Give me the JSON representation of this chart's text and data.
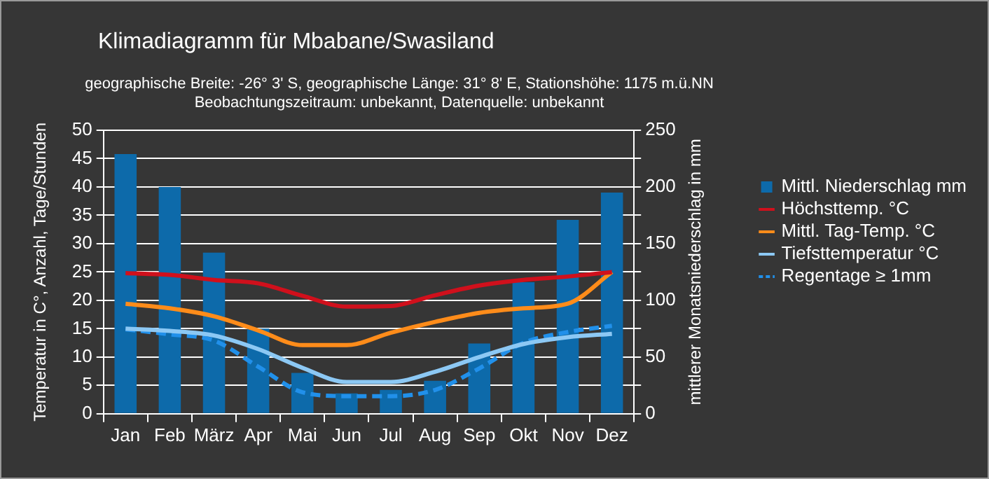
{
  "chart_data": {
    "type": "bar",
    "title": "Klimadiagramm für Mbabane/Swasiland",
    "subtitle": "geographische Breite: -26° 3' S, geographische Länge: 31° 8' E, Stationshöhe: 1175 m.ü.NN\nBeobachtungszeitraum: unbekannt, Datenquelle: unbekannt",
    "ylabel": "Temperatur in C°, Anzahl, Tage/Stunden",
    "y2label": "mittlerer Monatsniederschlag in mm",
    "categories": [
      "Jan",
      "Feb",
      "März",
      "Apr",
      "Mai",
      "Jun",
      "Jul",
      "Aug",
      "Sep",
      "Okt",
      "Nov",
      "Dez"
    ],
    "series": [
      {
        "name": "Mittl. Niederschlag mm",
        "axis": "y2",
        "color": "#0d6aaa",
        "values": [
          229,
          200,
          142,
          75,
          36,
          18,
          21,
          29,
          62,
          116,
          171,
          195
        ]
      },
      {
        "name": "Höchsttemp. °C",
        "type": "line",
        "color": "#d0101c",
        "values": [
          24.8,
          24.5,
          23.6,
          23.0,
          20.8,
          18.9,
          19.0,
          20.9,
          22.6,
          23.6,
          24.2,
          25.0
        ]
      },
      {
        "name": "Mittl. Tag-Temp. °C",
        "type": "line",
        "color": "#ff8c1a",
        "values": [
          19.4,
          18.6,
          17.2,
          14.7,
          12.1,
          12.1,
          14.3,
          16.2,
          17.8,
          18.6,
          19.4,
          25.0
        ]
      },
      {
        "name": "Tiefsttemperatur °C",
        "type": "line",
        "color": "#8cc8f4",
        "values": [
          15.0,
          14.6,
          13.8,
          11.4,
          8.1,
          5.6,
          5.6,
          7.4,
          10.0,
          12.3,
          13.5,
          14.1
        ]
      },
      {
        "name": "Regentage ≥ 1mm",
        "type": "line",
        "line_style": "dashed",
        "color": "#2190ea",
        "values": [
          14.9,
          14.0,
          12.9,
          8.3,
          3.8,
          3.1,
          3.1,
          4.2,
          8.0,
          12.5,
          14.4,
          15.5
        ]
      }
    ],
    "ylim": [
      0,
      50
    ],
    "yticks": [
      0,
      5,
      10,
      15,
      20,
      25,
      30,
      35,
      40,
      45,
      50
    ],
    "y2lim": [
      0,
      250
    ],
    "y2ticks": [
      0,
      {
        "value": 25,
        "label": null
      },
      50,
      {
        "value": 75,
        "label": null
      },
      100,
      {
        "value": 125,
        "label": null
      },
      150,
      {
        "value": 175,
        "label": null
      },
      200,
      {
        "value": 225,
        "label": null
      },
      250
    ],
    "grid": "y",
    "legend": "right"
  }
}
